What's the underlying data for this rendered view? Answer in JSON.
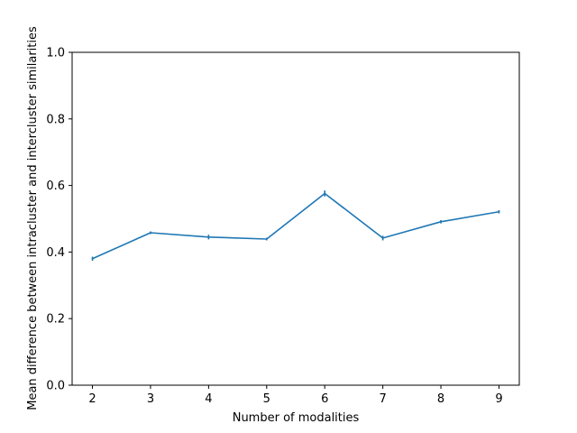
{
  "chart_data": {
    "type": "line",
    "title": "",
    "xlabel": "Number of modalities",
    "ylabel": "Mean difference between intracluster and intercluster similarities",
    "x": [
      2,
      3,
      4,
      5,
      6,
      7,
      8,
      9
    ],
    "series": [
      {
        "values": [
          0.38,
          0.458,
          0.445,
          0.439,
          0.576,
          0.442,
          0.491,
          0.521
        ],
        "errors": [
          0.006,
          0.004,
          0.007,
          0.004,
          0.009,
          0.007,
          0.005,
          0.005
        ],
        "color": "#1f77b4"
      }
    ],
    "xlim": [
      1.65,
      9.35
    ],
    "ylim": [
      0.0,
      1.0
    ],
    "xticks": [
      "2",
      "3",
      "4",
      "5",
      "6",
      "7",
      "8",
      "9"
    ],
    "yticks": [
      "0.0",
      "0.2",
      "0.4",
      "0.6",
      "0.8",
      "1.0"
    ],
    "grid": false,
    "legend": "none"
  }
}
